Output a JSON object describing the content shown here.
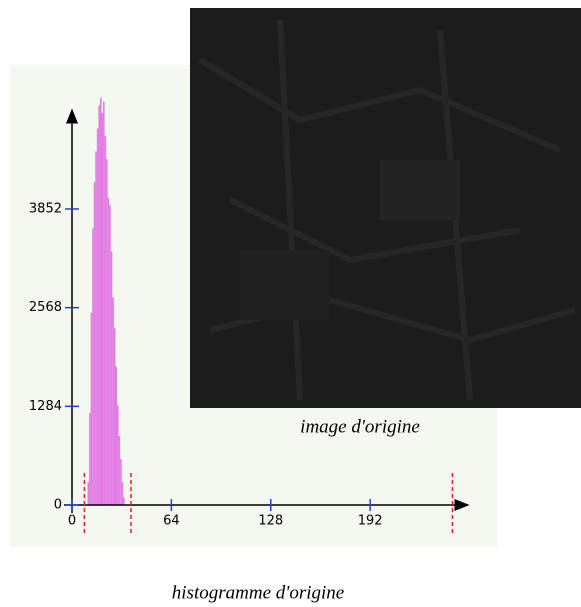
{
  "chart_data": {
    "type": "histogram",
    "title": "histogramme d'origine",
    "annotations": [
      "image d'origine"
    ],
    "bins": [
      10,
      11,
      12,
      13,
      14,
      15,
      16,
      17,
      18,
      19,
      20,
      21,
      22,
      23,
      24,
      25,
      26,
      27,
      28,
      29,
      30,
      31,
      32,
      33,
      34
    ],
    "values": [
      300,
      1200,
      2500,
      3600,
      4200,
      4600,
      4900,
      5200,
      5300,
      5100,
      5250,
      4800,
      4500,
      4000,
      3900,
      3300,
      2700,
      2300,
      1800,
      1300,
      900,
      600,
      300,
      100
    ],
    "color": "#e27ce2",
    "markers": [
      8,
      38,
      245
    ],
    "marker_color": "#e02020",
    "xlim": [
      0,
      255
    ],
    "xticks": [
      0,
      64,
      128,
      192
    ],
    "ylim": [
      0,
      5140
    ],
    "yticks": [
      0,
      1284,
      2568,
      3852
    ],
    "tick_color": "#2a3cd0"
  }
}
